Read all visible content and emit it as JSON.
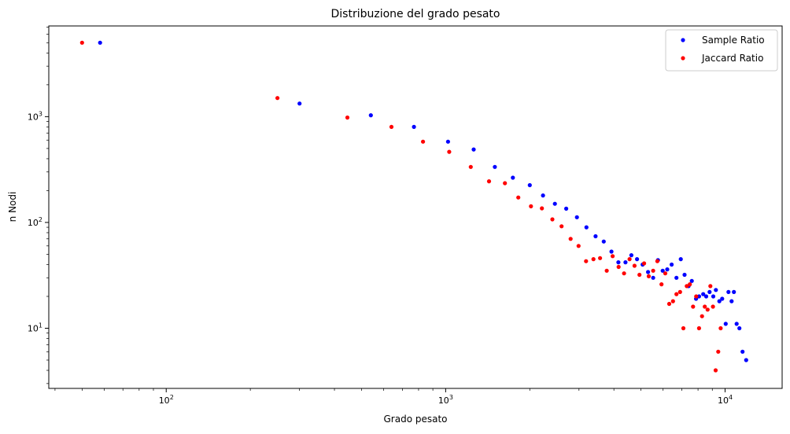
{
  "chart_data": {
    "type": "scatter",
    "title": "Distribuzione del grado pesato",
    "xlabel": "Grado pesato",
    "ylabel": "n Nodi",
    "xscale": "log",
    "yscale": "log",
    "xlim": [
      38,
      16000
    ],
    "ylim": [
      2.7,
      7200
    ],
    "grid": false,
    "legend_position": "top-right",
    "x_ticks": [
      {
        "value": 100,
        "base": "10",
        "exp": "2"
      },
      {
        "value": 1000,
        "base": "10",
        "exp": "3"
      },
      {
        "value": 10000,
        "base": "10",
        "exp": "4"
      }
    ],
    "y_ticks": [
      {
        "value": 10,
        "base": "10",
        "exp": "1"
      },
      {
        "value": 100,
        "base": "10",
        "exp": "2"
      },
      {
        "value": 1000,
        "base": "10",
        "exp": "3"
      }
    ],
    "series": [
      {
        "name": "Sample Ratio",
        "color": "#0000ff",
        "points": [
          [
            58,
            5000
          ],
          [
            300,
            1330
          ],
          [
            540,
            1030
          ],
          [
            770,
            800
          ],
          [
            1020,
            580
          ],
          [
            1260,
            490
          ],
          [
            1500,
            335
          ],
          [
            1740,
            265
          ],
          [
            2000,
            225
          ],
          [
            2230,
            180
          ],
          [
            2460,
            150
          ],
          [
            2700,
            135
          ],
          [
            2950,
            112
          ],
          [
            3190,
            90
          ],
          [
            3440,
            74
          ],
          [
            3680,
            66
          ],
          [
            3920,
            53
          ],
          [
            4150,
            42
          ],
          [
            4400,
            42
          ],
          [
            4620,
            49
          ],
          [
            4840,
            45
          ],
          [
            5070,
            40
          ],
          [
            5300,
            34
          ],
          [
            5530,
            30
          ],
          [
            5750,
            44
          ],
          [
            5980,
            35
          ],
          [
            6210,
            36
          ],
          [
            6440,
            40
          ],
          [
            6700,
            30
          ],
          [
            6940,
            45
          ],
          [
            7160,
            32
          ],
          [
            7400,
            25
          ],
          [
            7600,
            28
          ],
          [
            7870,
            19
          ],
          [
            8070,
            20
          ],
          [
            8350,
            21
          ],
          [
            8560,
            20
          ],
          [
            8800,
            22
          ],
          [
            9070,
            20
          ],
          [
            9270,
            23
          ],
          [
            9540,
            18
          ],
          [
            9760,
            19
          ],
          [
            10050,
            11
          ],
          [
            10280,
            22
          ],
          [
            10550,
            18
          ],
          [
            10750,
            22
          ],
          [
            11000,
            11
          ],
          [
            11250,
            10
          ],
          [
            11550,
            6
          ],
          [
            11900,
            5
          ]
        ]
      },
      {
        "name": "Jaccard Ratio",
        "color": "#ff0000",
        "points": [
          [
            50,
            5000
          ],
          [
            250,
            1500
          ],
          [
            445,
            980
          ],
          [
            640,
            800
          ],
          [
            830,
            580
          ],
          [
            1030,
            465
          ],
          [
            1230,
            335
          ],
          [
            1430,
            245
          ],
          [
            1630,
            235
          ],
          [
            1820,
            172
          ],
          [
            2020,
            142
          ],
          [
            2210,
            136
          ],
          [
            2410,
            107
          ],
          [
            2600,
            92
          ],
          [
            2800,
            70
          ],
          [
            2990,
            60
          ],
          [
            3180,
            43
          ],
          [
            3380,
            45
          ],
          [
            3570,
            46
          ],
          [
            3770,
            35
          ],
          [
            3960,
            48
          ],
          [
            4160,
            38
          ],
          [
            4350,
            33
          ],
          [
            4550,
            45
          ],
          [
            4740,
            39
          ],
          [
            4940,
            32
          ],
          [
            5130,
            41
          ],
          [
            5330,
            31
          ],
          [
            5530,
            35
          ],
          [
            5720,
            43
          ],
          [
            5920,
            26
          ],
          [
            6110,
            33
          ],
          [
            6310,
            17
          ],
          [
            6510,
            18
          ],
          [
            6700,
            21
          ],
          [
            6900,
            22
          ],
          [
            7090,
            10
          ],
          [
            7290,
            25
          ],
          [
            7480,
            26
          ],
          [
            7680,
            16
          ],
          [
            7880,
            20
          ],
          [
            8070,
            10
          ],
          [
            8270,
            13
          ],
          [
            8460,
            16
          ],
          [
            8660,
            15
          ],
          [
            8860,
            25
          ],
          [
            9050,
            16
          ],
          [
            9250,
            4
          ],
          [
            9450,
            6
          ],
          [
            9640,
            10
          ]
        ]
      }
    ]
  }
}
